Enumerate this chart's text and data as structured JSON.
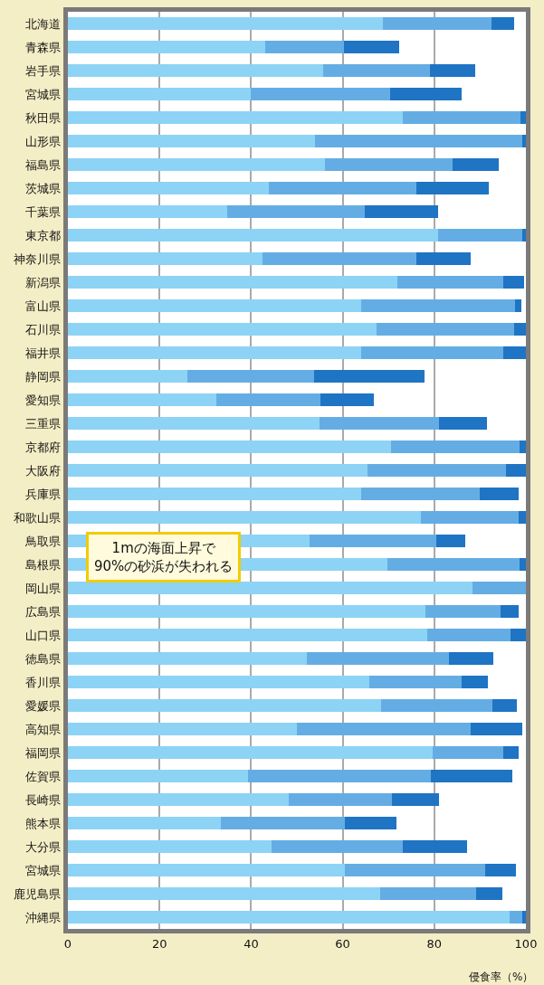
{
  "chart_data": {
    "type": "bar",
    "orientation": "horizontal",
    "stacked": true,
    "xlabel": "侵食率（%）",
    "categories": [
      "北海道",
      "青森県",
      "岩手県",
      "宮城県",
      "秋田県",
      "山形県",
      "福島県",
      "茨城県",
      "千葉県",
      "東京都",
      "神奈川県",
      "新潟県",
      "富山県",
      "石川県",
      "福井県",
      "静岡県",
      "愛知県",
      "三重県",
      "京都府",
      "大阪府",
      "兵庫県",
      "和歌山県",
      "鳥取県",
      "島根県",
      "岡山県",
      "広島県",
      "山口県",
      "徳島県",
      "香川県",
      "愛媛県",
      "高知県",
      "福岡県",
      "佐賀県",
      "長崎県",
      "熊本県",
      "大分県",
      "宮城県",
      "鹿児島県",
      "沖縄県"
    ],
    "series": [
      {
        "color": "#8dd3f5",
        "values": [
          68.7,
          43,
          55.7,
          40,
          73.1,
          53.9,
          56.1,
          43.8,
          34.8,
          80.8,
          42.4,
          72,
          64.1,
          67.4,
          64.1,
          26,
          32.5,
          54.9,
          70.5,
          65.4,
          64.1,
          77.1,
          52.8,
          69.7,
          88.3,
          78.1,
          78.5,
          52.1,
          65.8,
          68.3,
          50,
          79.7,
          39.3,
          48.2,
          33.4,
          44.4,
          60.4,
          68.1,
          96.5
        ]
      },
      {
        "color": "#64ade4",
        "values": [
          23.8,
          17.2,
          23.4,
          30.3,
          25.7,
          45.4,
          27.9,
          32.3,
          30,
          18.4,
          33.7,
          23,
          33.6,
          30.1,
          30.9,
          27.7,
          22.6,
          26.1,
          28.1,
          30.3,
          25.9,
          21.3,
          27.6,
          28.9,
          11.7,
          16.4,
          18.1,
          31.1,
          20.1,
          24.4,
          38,
          15.3,
          40,
          22.6,
          27.1,
          28.8,
          30.8,
          21.1,
          2.7
        ]
      },
      {
        "color": "#1f74c4",
        "values": [
          4.9,
          12.2,
          9.9,
          15.6,
          1.2,
          0.7,
          10.1,
          15.8,
          16,
          0.8,
          11.9,
          4.7,
          1.3,
          2.5,
          5,
          24.2,
          11.6,
          10.5,
          1.4,
          4.3,
          8.4,
          1.6,
          6.4,
          1.4,
          0,
          4,
          3.4,
          9.7,
          5.8,
          5.3,
          11.2,
          3.4,
          17.7,
          10.2,
          11.3,
          14,
          6.6,
          5.6,
          0.8
        ]
      }
    ],
    "xlim": [
      0,
      100
    ],
    "xticks": [
      0,
      20,
      40,
      60,
      80,
      100
    ],
    "grid": "x",
    "legend": false,
    "annotations": [
      "1mの海面上昇で\n90%の砂浜が失われる"
    ]
  }
}
